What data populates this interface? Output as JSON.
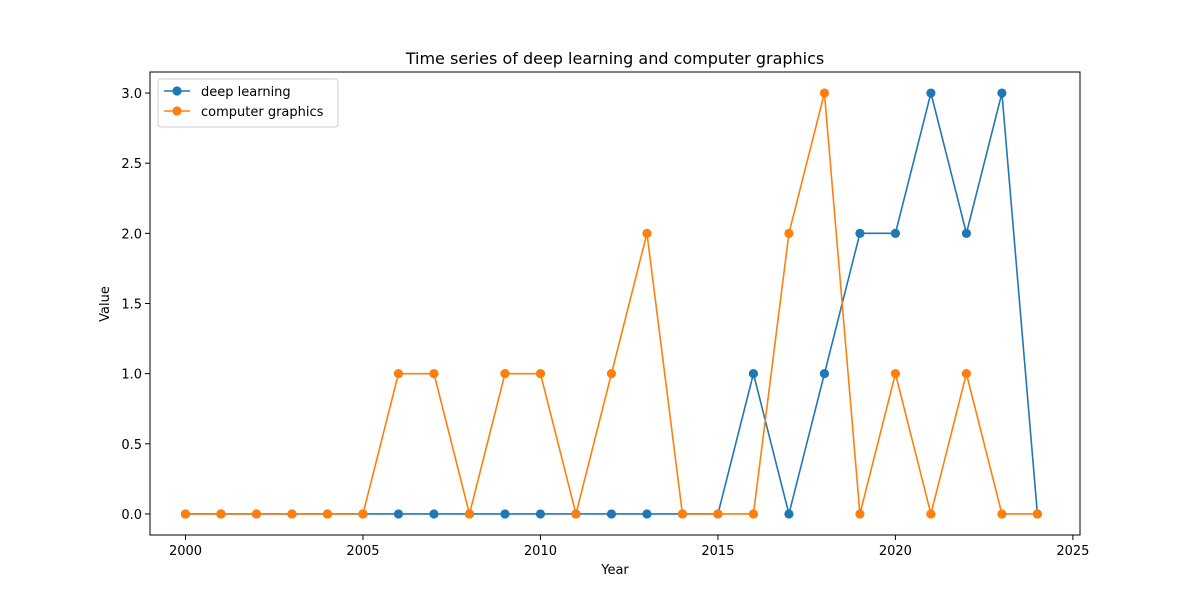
{
  "chart_data": {
    "type": "line",
    "title": "Time series of deep learning and computer graphics",
    "xlabel": "Year",
    "ylabel": "Value",
    "x": [
      2000,
      2001,
      2002,
      2003,
      2004,
      2005,
      2006,
      2007,
      2008,
      2009,
      2010,
      2011,
      2012,
      2013,
      2014,
      2015,
      2016,
      2017,
      2018,
      2019,
      2020,
      2021,
      2022,
      2023,
      2024
    ],
    "xlim": [
      1999,
      2025.2
    ],
    "ylim": [
      -0.15,
      3.15
    ],
    "xticks": [
      2000,
      2005,
      2010,
      2015,
      2020,
      2025
    ],
    "xtick_labels": [
      "2000",
      "2005",
      "2010",
      "2015",
      "2020",
      "2025"
    ],
    "yticks": [
      0.0,
      0.5,
      1.0,
      1.5,
      2.0,
      2.5,
      3.0
    ],
    "ytick_labels": [
      "0.0",
      "0.5",
      "1.0",
      "1.5",
      "2.0",
      "2.5",
      "3.0"
    ],
    "grid": false,
    "legend_position": "top-left",
    "series": [
      {
        "name": "deep learning",
        "color": "#1f77b4",
        "values": [
          0,
          0,
          0,
          0,
          0,
          0,
          0,
          0,
          0,
          0,
          0,
          0,
          0,
          0,
          0,
          0,
          1,
          0,
          1,
          2,
          2,
          3,
          2,
          3,
          0
        ]
      },
      {
        "name": "computer graphics",
        "color": "#ff7f0e",
        "values": [
          0,
          0,
          0,
          0,
          0,
          0,
          1,
          1,
          0,
          1,
          1,
          0,
          1,
          2,
          0,
          0,
          0,
          2,
          3,
          0,
          1,
          0,
          1,
          0,
          0
        ]
      }
    ]
  }
}
